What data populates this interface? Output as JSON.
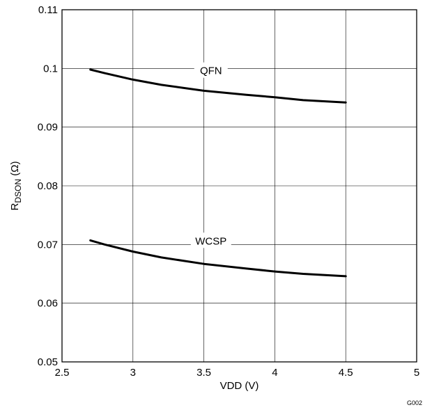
{
  "chart_data": {
    "type": "line",
    "xlabel": "VDD (V)",
    "ylabel": {
      "main": "R",
      "sub": "DSON",
      "unit": " (Ω)"
    },
    "xlim": [
      2.5,
      5
    ],
    "ylim": [
      0.05,
      0.11
    ],
    "xticks": [
      2.5,
      3,
      3.5,
      4,
      4.5,
      5
    ],
    "xtick_labels": [
      "2.5",
      "3",
      "3.5",
      "4",
      "4.5",
      "5"
    ],
    "yticks": [
      0.05,
      0.06,
      0.07,
      0.08,
      0.09,
      0.1,
      0.11
    ],
    "ytick_labels": [
      "0.05",
      "0.06",
      "0.07",
      "0.08",
      "0.09",
      "0.1",
      "0.11"
    ],
    "grid": true,
    "series": [
      {
        "name": "QFN",
        "label_at": [
          3.55,
          0.0996
        ],
        "x": [
          2.7,
          2.8,
          3.0,
          3.2,
          3.5,
          3.8,
          4.0,
          4.2,
          4.5
        ],
        "y": [
          0.0998,
          0.0992,
          0.0981,
          0.0972,
          0.0962,
          0.0955,
          0.0951,
          0.0946,
          0.0942
        ]
      },
      {
        "name": "WCSP",
        "label_at": [
          3.55,
          0.0706
        ],
        "x": [
          2.7,
          2.8,
          3.0,
          3.2,
          3.5,
          3.8,
          4.0,
          4.2,
          4.5
        ],
        "y": [
          0.0707,
          0.07,
          0.0688,
          0.0678,
          0.0667,
          0.0659,
          0.0654,
          0.065,
          0.0646
        ]
      }
    ]
  },
  "figure_id": "G002"
}
